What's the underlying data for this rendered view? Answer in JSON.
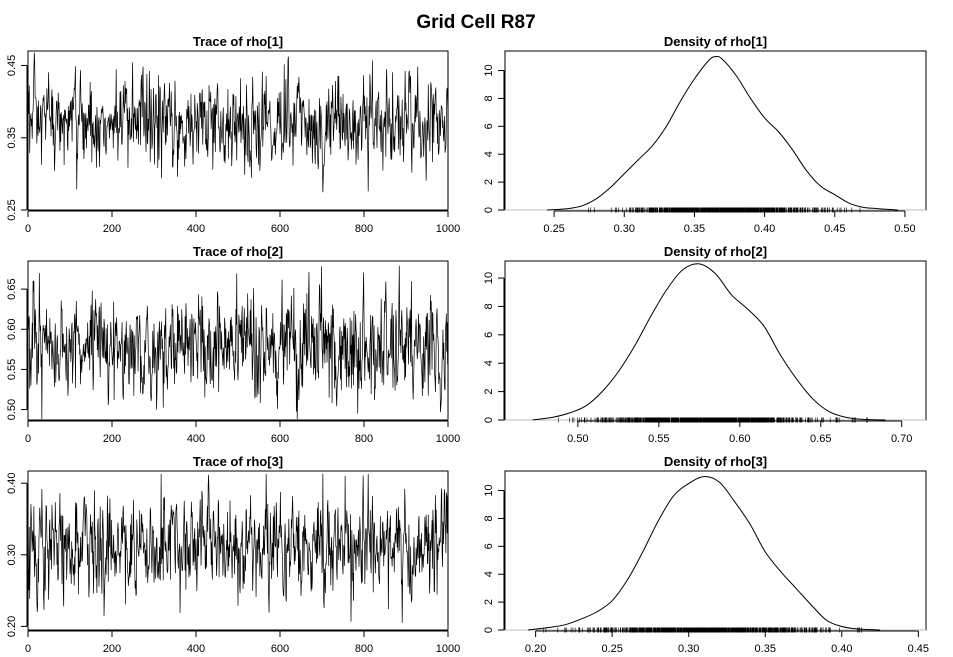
{
  "figure": {
    "title": "Grid Cell R87"
  },
  "chart_data": [
    {
      "type": "line",
      "kind": "trace",
      "title": "Trace of rho[1]",
      "xlabel": "",
      "ylabel": "",
      "xlim": [
        0,
        1000
      ],
      "ylim": [
        0.25,
        0.47
      ],
      "xticks": [
        "0",
        "200",
        "400",
        "600",
        "800",
        "1000"
      ],
      "yticks": [
        "0.25",
        "0.35",
        "0.45"
      ],
      "series": [
        {
          "name": "rho[1]",
          "n_iter": 1000,
          "mean": 0.37,
          "sd": 0.033,
          "min": 0.255,
          "max": 0.468
        }
      ]
    },
    {
      "type": "line",
      "kind": "density",
      "title": "Density of rho[1]",
      "xlabel": "",
      "ylabel": "",
      "xlim": [
        0.215,
        0.515
      ],
      "ylim": [
        0,
        11.4
      ],
      "xticks": [
        "0.25",
        "0.30",
        "0.35",
        "0.40",
        "0.45",
        "0.50"
      ],
      "yticks": [
        "0",
        "2",
        "4",
        "6",
        "8",
        "10"
      ],
      "series": [
        {
          "name": "rho[1]",
          "x": [
            0.245,
            0.26,
            0.27,
            0.28,
            0.29,
            0.3,
            0.31,
            0.32,
            0.33,
            0.34,
            0.35,
            0.36,
            0.365,
            0.37,
            0.38,
            0.39,
            0.4,
            0.41,
            0.42,
            0.43,
            0.44,
            0.45,
            0.46,
            0.47,
            0.48,
            0.495
          ],
          "y": [
            0.0,
            0.1,
            0.3,
            0.8,
            1.6,
            2.6,
            3.6,
            4.6,
            6.0,
            7.8,
            9.4,
            10.7,
            11.0,
            10.8,
            9.6,
            8.0,
            6.6,
            5.6,
            4.3,
            2.8,
            1.7,
            1.1,
            0.5,
            0.2,
            0.1,
            0.0
          ]
        }
      ],
      "rug": {
        "n_points": 1000
      }
    },
    {
      "type": "line",
      "kind": "trace",
      "title": "Trace of rho[2]",
      "xlabel": "",
      "ylabel": "",
      "xlim": [
        0,
        1000
      ],
      "ylim": [
        0.487,
        0.685
      ],
      "xticks": [
        "0",
        "200",
        "400",
        "600",
        "800",
        "1000"
      ],
      "yticks": [
        "0.50",
        "0.55",
        "0.60",
        "0.65"
      ],
      "series": [
        {
          "name": "rho[2]",
          "n_iter": 1000,
          "mean": 0.577,
          "sd": 0.032,
          "min": 0.488,
          "max": 0.68
        }
      ]
    },
    {
      "type": "line",
      "kind": "density",
      "title": "Density of rho[2]",
      "xlabel": "",
      "ylabel": "",
      "xlim": [
        0.455,
        0.715
      ],
      "ylim": [
        0,
        11.2
      ],
      "xticks": [
        "0.50",
        "0.55",
        "0.60",
        "0.65",
        "0.70"
      ],
      "yticks": [
        "0",
        "2",
        "4",
        "6",
        "8",
        "10"
      ],
      "series": [
        {
          "name": "rho[2]",
          "x": [
            0.472,
            0.485,
            0.495,
            0.505,
            0.515,
            0.525,
            0.535,
            0.545,
            0.555,
            0.565,
            0.575,
            0.585,
            0.595,
            0.605,
            0.615,
            0.625,
            0.635,
            0.645,
            0.655,
            0.665,
            0.675,
            0.69
          ],
          "y": [
            0.0,
            0.2,
            0.5,
            1.0,
            2.0,
            3.4,
            5.2,
            7.3,
            9.2,
            10.6,
            11.0,
            10.3,
            8.8,
            7.8,
            6.6,
            4.6,
            2.9,
            1.5,
            0.6,
            0.2,
            0.05,
            0.0
          ]
        }
      ],
      "rug": {
        "n_points": 1000
      }
    },
    {
      "type": "line",
      "kind": "trace",
      "title": "Trace of rho[3]",
      "xlabel": "",
      "ylabel": "",
      "xlim": [
        0,
        1000
      ],
      "ylim": [
        0.195,
        0.417
      ],
      "xticks": [
        "0",
        "200",
        "400",
        "600",
        "800",
        "1000"
      ],
      "yticks": [
        "0.20",
        "0.30",
        "0.40"
      ],
      "series": [
        {
          "name": "rho[3]",
          "n_iter": 1000,
          "mean": 0.31,
          "sd": 0.034,
          "min": 0.205,
          "max": 0.413
        }
      ]
    },
    {
      "type": "line",
      "kind": "density",
      "title": "Density of rho[3]",
      "xlabel": "",
      "ylabel": "",
      "xlim": [
        0.18,
        0.455
      ],
      "ylim": [
        0,
        11.4
      ],
      "xticks": [
        "0.20",
        "0.25",
        "0.30",
        "0.35",
        "0.40",
        "0.45"
      ],
      "yticks": [
        "0",
        "2",
        "4",
        "6",
        "8",
        "10"
      ],
      "series": [
        {
          "name": "rho[3]",
          "x": [
            0.195,
            0.21,
            0.22,
            0.23,
            0.24,
            0.25,
            0.26,
            0.27,
            0.28,
            0.29,
            0.3,
            0.31,
            0.32,
            0.33,
            0.34,
            0.35,
            0.36,
            0.37,
            0.38,
            0.39,
            0.4,
            0.41,
            0.425
          ],
          "y": [
            0.0,
            0.2,
            0.4,
            0.8,
            1.3,
            2.1,
            3.6,
            5.6,
            7.8,
            9.6,
            10.5,
            11.0,
            10.6,
            9.2,
            7.6,
            5.6,
            4.2,
            3.0,
            1.8,
            0.7,
            0.25,
            0.08,
            0.0
          ]
        }
      ],
      "rug": {
        "n_points": 1000
      }
    }
  ]
}
